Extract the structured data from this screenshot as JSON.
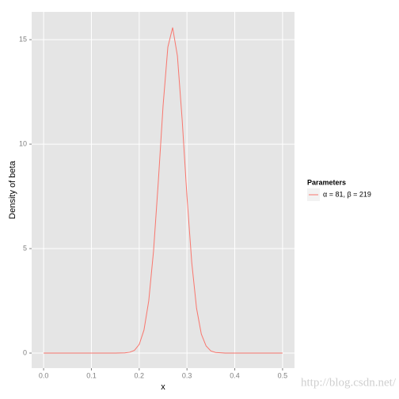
{
  "chart_data": {
    "type": "line",
    "xlabel": "x",
    "ylabel": "Density of beta",
    "legend_title": "Parameters",
    "legend_position": "right",
    "x": [
      0,
      0.05,
      0.1,
      0.15,
      0.17,
      0.18,
      0.19,
      0.2,
      0.21,
      0.22,
      0.23,
      0.24,
      0.25,
      0.26,
      0.27,
      0.28,
      0.29,
      0.3,
      0.31,
      0.32,
      0.33,
      0.34,
      0.35,
      0.36,
      0.38,
      0.4,
      0.45,
      0.5
    ],
    "series": [
      {
        "name": "α = 81, β = 219",
        "color": "#f8766d",
        "values": [
          0,
          0,
          0,
          0,
          0.01,
          0.04,
          0.13,
          0.41,
          1.1,
          2.5,
          4.88,
          8.2,
          11.84,
          14.65,
          15.58,
          14.22,
          11.14,
          7.49,
          4.33,
          2.15,
          0.91,
          0.34,
          0.1,
          0.03,
          0,
          0,
          0,
          0
        ]
      }
    ],
    "xlim": [
      -0.025,
      0.525
    ],
    "ylim": [
      -0.72,
      16.33
    ],
    "xticks": [
      {
        "value": 0,
        "label": "0.0"
      },
      0.1,
      0.2,
      0.3,
      0.4,
      0.5
    ],
    "yticks": [
      0,
      5,
      10,
      15
    ],
    "grid": true,
    "watermark": "http://blog.csdn.net/"
  }
}
